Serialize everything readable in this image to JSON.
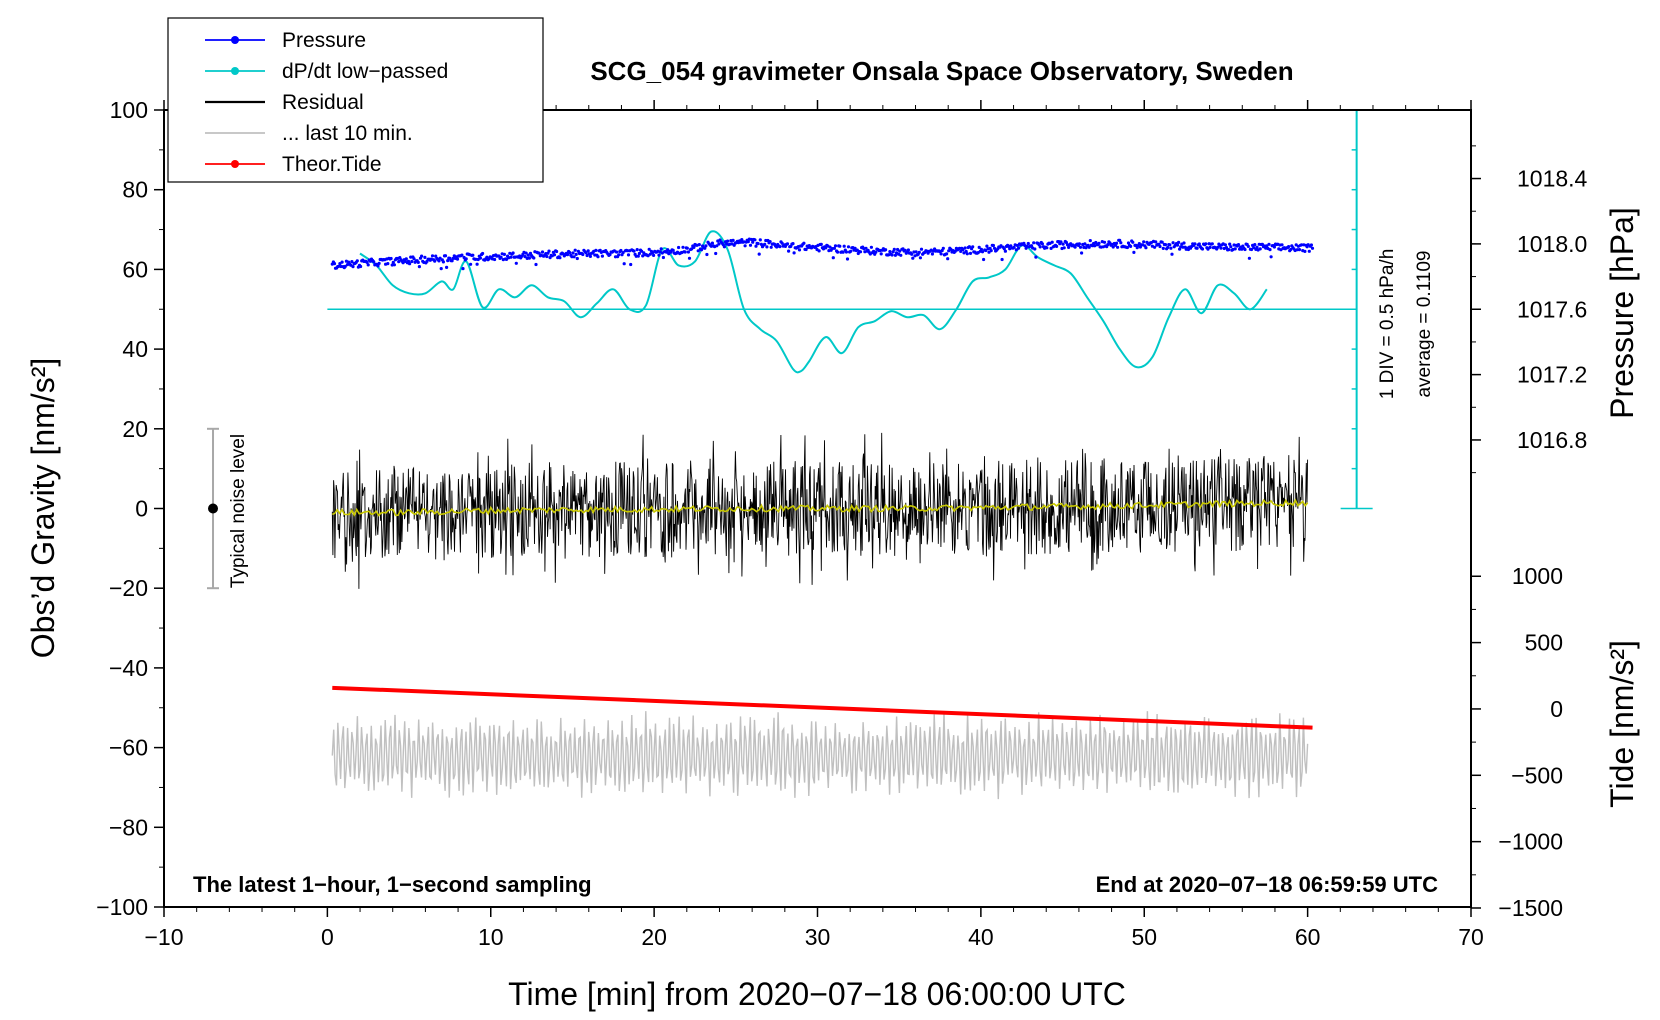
{
  "chart_data": {
    "type": "line",
    "title": "SCG_054 gravimeter Onsala Space Observatory, Sweden",
    "xlabel": "Time [min] from 2020−07−18 06:00:00 UTC",
    "ylabel_left": "Obs’d Gravity [nm/s²]",
    "ylabel_right_top": "Pressure [hPa]",
    "ylabel_right_bottom": "Tide [nm/s²]",
    "xlim": [
      -10,
      70
    ],
    "ylim_left": [
      -100,
      100
    ],
    "xticks": [
      "−10",
      "0",
      "10",
      "20",
      "30",
      "40",
      "50",
      "60",
      "70"
    ],
    "yticks_left": [
      "−100",
      "−80",
      "−60",
      "−40",
      "−20",
      "0",
      "20",
      "40",
      "60",
      "80",
      "100"
    ],
    "pressure_axis": {
      "ticks": [
        "1016.8",
        "1017.2",
        "1017.6",
        "1018.0",
        "1018.4"
      ],
      "values": [
        1016.8,
        1017.2,
        1017.6,
        1018.0,
        1018.4
      ],
      "ref_value": 1017.6,
      "ref_gravity": 50,
      "gravity_per_hpa": 41.0
    },
    "tide_axis": {
      "ticks": [
        "1000",
        "500",
        "0",
        "−500",
        "−1000",
        "−1500"
      ],
      "values": [
        1000,
        500,
        0,
        -500,
        -1000,
        -1500
      ],
      "ref_value": 1000,
      "ref_gravity": -17,
      "gravity_per_unit": 0.0333
    },
    "legend": [
      {
        "label": "Pressure",
        "color": "#0000ff",
        "marker": true
      },
      {
        "label": "dP/dt low−passed",
        "color": "#00c8c8",
        "marker": true
      },
      {
        "label": "Residual",
        "color": "#000000",
        "marker": false
      },
      {
        "label": "... last 10 min.",
        "color": "#c0c0c0",
        "marker": false
      },
      {
        "label": "Theor.Tide",
        "color": "#ff0000",
        "marker": true
      }
    ],
    "scale_bar": {
      "label_div": "1 DIV = 0.5 hPa/h",
      "label_avg": "average = 0.1109",
      "x": 63,
      "y_from": 0,
      "y_to": 100
    },
    "noise_bar": {
      "label": "Typical noise level",
      "x": -7,
      "center": 0,
      "low": -20,
      "high": 20
    },
    "notes": {
      "left": "The latest 1−hour, 1−second sampling",
      "right": "End at 2020−07−18 06:59:59 UTC"
    },
    "series": [
      {
        "name": "Pressure (gravity-axis units)",
        "color": "#0000ff",
        "x": [
          0.3,
          2,
          4,
          6,
          8,
          10,
          12,
          14,
          16,
          18,
          20,
          22,
          24,
          26,
          28,
          30,
          32,
          34,
          36,
          38,
          40,
          42,
          44,
          46,
          48,
          50,
          52,
          54,
          56,
          58,
          60.3
        ],
        "y": [
          61,
          61.5,
          62,
          62.5,
          63,
          63.2,
          63.5,
          63.8,
          64,
          64,
          64.3,
          65,
          66.5,
          66.8,
          66,
          65.5,
          65,
          64.5,
          64.3,
          64.5,
          65,
          65.5,
          66,
          66.3,
          66.5,
          66.2,
          66,
          65.7,
          65.5,
          65.5,
          65.3
        ]
      },
      {
        "name": "dP/dt low-passed (gravity-axis units)",
        "color": "#00c8c8",
        "x": [
          2,
          3,
          4,
          5,
          6,
          7,
          7.7,
          8.5,
          9.5,
          10.5,
          11.5,
          12.5,
          13.5,
          14.5,
          15.5,
          16.5,
          17.5,
          18.5,
          19.5,
          20.5,
          21.5,
          22.5,
          23.5,
          24.5,
          25.5,
          26.5,
          27.5,
          28.5,
          29,
          29.5,
          30.5,
          31.5,
          32.5,
          33.5,
          34.5,
          35.5,
          36.5,
          37.5,
          38.5,
          39.5,
          40.5,
          41.5,
          42.5,
          43.5,
          44.5,
          45.5,
          46.5,
          47.5,
          48.5,
          49.5,
          50.5,
          51.5,
          52.5,
          53.5,
          54.5,
          55.5,
          56.5,
          57.5
        ],
        "y": [
          64,
          61,
          56,
          54,
          54,
          57,
          55,
          62,
          50.5,
          55,
          53,
          56,
          53,
          52,
          48,
          51.5,
          55,
          50,
          51,
          65,
          61,
          62,
          69.5,
          65,
          50,
          45,
          42,
          35,
          34.5,
          37,
          43,
          39,
          45.5,
          47,
          49.5,
          48,
          48.5,
          45,
          50,
          57,
          58,
          60,
          66,
          63,
          61,
          59,
          53,
          47,
          40,
          35.5,
          38,
          48,
          55,
          49,
          56,
          54,
          50,
          55
        ]
      },
      {
        "name": "Residual mean",
        "color": "#c8c800",
        "x": [
          0.3,
          5,
          10,
          15,
          20,
          25,
          30,
          35,
          40,
          45,
          50,
          55,
          60
        ],
        "y": [
          -1,
          -1,
          -0.5,
          -0.3,
          -0.2,
          0,
          0,
          0,
          0.2,
          0.5,
          0.8,
          1.2,
          1.5
        ]
      },
      {
        "name": "Theor.Tide (gravity-axis units)",
        "color": "#ff0000",
        "x": [
          0.3,
          60.3
        ],
        "y": [
          -45,
          -55
        ]
      }
    ],
    "residual_band": {
      "x": [
        0.3,
        60
      ],
      "typical_amplitude": 12,
      "extreme_min": -21,
      "extreme_max": 23
    },
    "last_10min_band": {
      "x": [
        0.3,
        60
      ],
      "center": -62,
      "typical_amplitude": 8,
      "extreme_min": -82,
      "extreme_max": -47
    }
  }
}
